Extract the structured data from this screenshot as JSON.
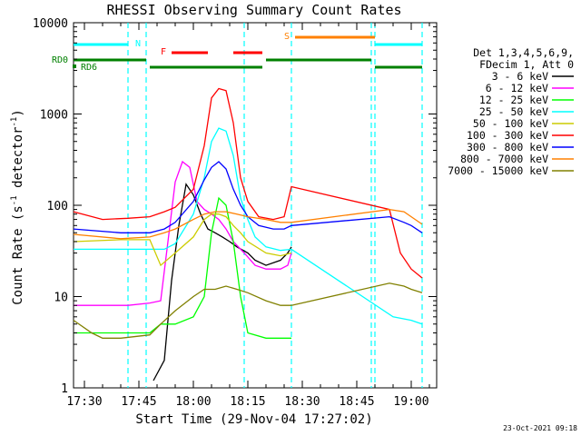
{
  "chart_data": {
    "type": "line",
    "title": "RHESSI Observing Summary Count Rates",
    "xlabel": "Start Time (29-Nov-04 17:27:02)",
    "ylabel": "Count Rate (s⁻¹ detector⁻¹)",
    "ylabel_parts": [
      "Count Rate (s",
      "-1",
      " detector",
      "-1",
      ")"
    ],
    "yscale": "log",
    "ylim": [
      1,
      10000
    ],
    "xlim": [
      "17:27",
      "19:07"
    ],
    "x_ticks": [
      "17:30",
      "17:45",
      "18:00",
      "18:15",
      "18:30",
      "18:45",
      "19:00"
    ],
    "y_ticks": [
      "1",
      "10",
      "100",
      "1000",
      "10000"
    ],
    "legend_header": [
      "Det 1,3,4,5,6,9,",
      "FDecim 1, Att 0"
    ],
    "timestamp": "23-Oct-2021 09:18",
    "series": [
      {
        "name": "3 - 6 keV",
        "color": "#000000",
        "points": [
          [
            "17:27",
            null
          ],
          [
            "17:49",
            1.2
          ],
          [
            "17:52",
            2
          ],
          [
            "17:54",
            15
          ],
          [
            "17:56",
            60
          ],
          [
            "17:58",
            170
          ],
          [
            "18:00",
            130
          ],
          [
            "18:02",
            80
          ],
          [
            "18:04",
            55
          ],
          [
            "18:06",
            50
          ],
          [
            "18:08",
            45
          ],
          [
            "18:10",
            40
          ],
          [
            "18:12",
            35
          ],
          [
            "18:15",
            30
          ],
          [
            "18:17",
            25
          ],
          [
            "18:20",
            22
          ],
          [
            "18:24",
            25
          ],
          [
            "18:26",
            30
          ],
          [
            "18:27",
            35
          ]
        ]
      },
      {
        "name": "6 - 12 keV",
        "color": "#ff00ff",
        "points": [
          [
            "17:27",
            8
          ],
          [
            "17:35",
            8
          ],
          [
            "17:42",
            8
          ],
          [
            "17:48",
            8.5
          ],
          [
            "17:51",
            9
          ],
          [
            "17:53",
            40
          ],
          [
            "17:55",
            180
          ],
          [
            "17:57",
            300
          ],
          [
            "17:59",
            260
          ],
          [
            "18:01",
            110
          ],
          [
            "18:03",
            90
          ],
          [
            "18:05",
            80
          ],
          [
            "18:07",
            70
          ],
          [
            "18:09",
            55
          ],
          [
            "18:11",
            40
          ],
          [
            "18:14",
            30
          ],
          [
            "18:17",
            22
          ],
          [
            "18:20",
            20
          ],
          [
            "18:24",
            20
          ],
          [
            "18:26",
            22
          ],
          [
            "18:27",
            30
          ]
        ]
      },
      {
        "name": "12 - 25 keV",
        "color": "#00ff00",
        "points": [
          [
            "17:27",
            4
          ],
          [
            "17:40",
            4
          ],
          [
            "17:48",
            4
          ],
          [
            "17:51",
            5
          ],
          [
            "17:55",
            5
          ],
          [
            "18:00",
            6
          ],
          [
            "18:03",
            10
          ],
          [
            "18:05",
            50
          ],
          [
            "18:07",
            120
          ],
          [
            "18:09",
            100
          ],
          [
            "18:11",
            40
          ],
          [
            "18:13",
            10
          ],
          [
            "18:15",
            4
          ],
          [
            "18:20",
            3.5
          ],
          [
            "18:24",
            3.5
          ],
          [
            "18:27",
            3.5
          ]
        ]
      },
      {
        "name": "25 - 50 keV",
        "color": "#00ffff",
        "points": [
          [
            "17:27",
            33
          ],
          [
            "17:35",
            33
          ],
          [
            "17:42",
            33
          ],
          [
            "17:48",
            33
          ],
          [
            "17:52",
            33
          ],
          [
            "17:55",
            38
          ],
          [
            "18:00",
            80
          ],
          [
            "18:03",
            200
          ],
          [
            "18:05",
            500
          ],
          [
            "18:07",
            700
          ],
          [
            "18:09",
            650
          ],
          [
            "18:11",
            350
          ],
          [
            "18:13",
            120
          ],
          [
            "18:15",
            70
          ],
          [
            "18:17",
            45
          ],
          [
            "18:20",
            35
          ],
          [
            "18:24",
            32
          ],
          [
            "18:27",
            33
          ],
          [
            "18:55",
            6
          ],
          [
            "19:00",
            5.5
          ],
          [
            "19:03",
            5
          ]
        ]
      },
      {
        "name": "50 - 100 keV",
        "color": "#cccc00",
        "points": [
          [
            "17:27",
            40
          ],
          [
            "17:40",
            42
          ],
          [
            "17:48",
            42
          ],
          [
            "17:51",
            22
          ],
          [
            "17:55",
            30
          ],
          [
            "18:00",
            45
          ],
          [
            "18:03",
            70
          ],
          [
            "18:05",
            80
          ],
          [
            "18:07",
            80
          ],
          [
            "18:09",
            75
          ],
          [
            "18:11",
            60
          ],
          [
            "18:13",
            50
          ],
          [
            "18:15",
            40
          ],
          [
            "18:20",
            30
          ],
          [
            "18:24",
            28
          ],
          [
            "18:27",
            30
          ]
        ]
      },
      {
        "name": "100 - 300 keV",
        "color": "#ff0000",
        "points": [
          [
            "17:27",
            85
          ],
          [
            "17:35",
            70
          ],
          [
            "17:42",
            72
          ],
          [
            "17:48",
            75
          ],
          [
            "17:52",
            85
          ],
          [
            "17:55",
            95
          ],
          [
            "18:00",
            150
          ],
          [
            "18:03",
            450
          ],
          [
            "18:05",
            1500
          ],
          [
            "18:07",
            1900
          ],
          [
            "18:09",
            1800
          ],
          [
            "18:11",
            800
          ],
          [
            "18:13",
            200
          ],
          [
            "18:15",
            110
          ],
          [
            "18:18",
            75
          ],
          [
            "18:22",
            70
          ],
          [
            "18:25",
            75
          ],
          [
            "18:27",
            160
          ],
          [
            "18:54",
            90
          ],
          [
            "18:57",
            30
          ],
          [
            "19:00",
            20
          ],
          [
            "19:03",
            16
          ]
        ]
      },
      {
        "name": "300 - 800 keV",
        "color": "#0000ff",
        "points": [
          [
            "17:27",
            55
          ],
          [
            "17:40",
            50
          ],
          [
            "17:48",
            50
          ],
          [
            "17:52",
            55
          ],
          [
            "17:55",
            65
          ],
          [
            "18:00",
            110
          ],
          [
            "18:03",
            190
          ],
          [
            "18:05",
            260
          ],
          [
            "18:07",
            300
          ],
          [
            "18:09",
            250
          ],
          [
            "18:11",
            150
          ],
          [
            "18:13",
            100
          ],
          [
            "18:15",
            75
          ],
          [
            "18:18",
            60
          ],
          [
            "18:22",
            55
          ],
          [
            "18:25",
            55
          ],
          [
            "18:27",
            60
          ],
          [
            "18:54",
            75
          ],
          [
            "18:58",
            65
          ],
          [
            "19:00",
            60
          ],
          [
            "19:03",
            50
          ]
        ]
      },
      {
        "name": "800 - 7000 keV",
        "color": "#ff8000",
        "points": [
          [
            "17:27",
            48
          ],
          [
            "17:40",
            43
          ],
          [
            "17:48",
            45
          ],
          [
            "17:52",
            50
          ],
          [
            "17:55",
            55
          ],
          [
            "18:00",
            70
          ],
          [
            "18:03",
            80
          ],
          [
            "18:06",
            85
          ],
          [
            "18:09",
            85
          ],
          [
            "18:12",
            80
          ],
          [
            "18:15",
            75
          ],
          [
            "18:20",
            70
          ],
          [
            "18:24",
            65
          ],
          [
            "18:27",
            65
          ],
          [
            "18:54",
            90
          ],
          [
            "18:58",
            85
          ],
          [
            "19:00",
            75
          ],
          [
            "19:03",
            62
          ]
        ]
      },
      {
        "name": "7000 - 15000 keV",
        "color": "#808000",
        "points": [
          [
            "17:27",
            5.5
          ],
          [
            "17:32",
            4
          ],
          [
            "17:35",
            3.5
          ],
          [
            "17:40",
            3.5
          ],
          [
            "17:48",
            3.8
          ],
          [
            "17:51",
            5
          ],
          [
            "17:55",
            7
          ],
          [
            "18:00",
            10
          ],
          [
            "18:03",
            12
          ],
          [
            "18:06",
            12
          ],
          [
            "18:09",
            13
          ],
          [
            "18:12",
            12
          ],
          [
            "18:15",
            11
          ],
          [
            "18:20",
            9
          ],
          [
            "18:24",
            8
          ],
          [
            "18:27",
            8
          ],
          [
            "18:54",
            14
          ],
          [
            "18:58",
            13
          ],
          [
            "19:00",
            12
          ],
          [
            "19:03",
            11
          ]
        ]
      }
    ],
    "flag_labels": {
      "N": "N",
      "F": "F",
      "S": "S",
      "RD0": "RD0",
      "RD6": "RD6"
    },
    "flags": {
      "N": {
        "color": "#00ffff",
        "segments": [
          [
            "17:27",
            "17:42"
          ],
          [
            "18:50",
            "19:03"
          ]
        ]
      },
      "F": {
        "color": "#ff0000",
        "segments": [
          [
            "17:54",
            "18:04"
          ],
          [
            "18:11",
            "18:19"
          ]
        ]
      },
      "S": {
        "color": "#ff8000",
        "segments": [
          [
            "18:28",
            "18:50"
          ]
        ]
      },
      "RD0": {
        "color": "#008000",
        "segments": [
          [
            "17:27",
            "17:47"
          ],
          [
            "18:20",
            "18:49"
          ]
        ]
      },
      "RD6": {
        "color": "#008000",
        "segments": [
          [
            "17:48",
            "18:19"
          ],
          [
            "18:50",
            "19:03"
          ]
        ]
      }
    },
    "vlines": {
      "color": "#00ffff",
      "times": [
        "17:42",
        "17:47",
        "18:14",
        "18:27",
        "18:49",
        "18:50",
        "19:03"
      ]
    },
    "grid": false,
    "legend": "right"
  }
}
